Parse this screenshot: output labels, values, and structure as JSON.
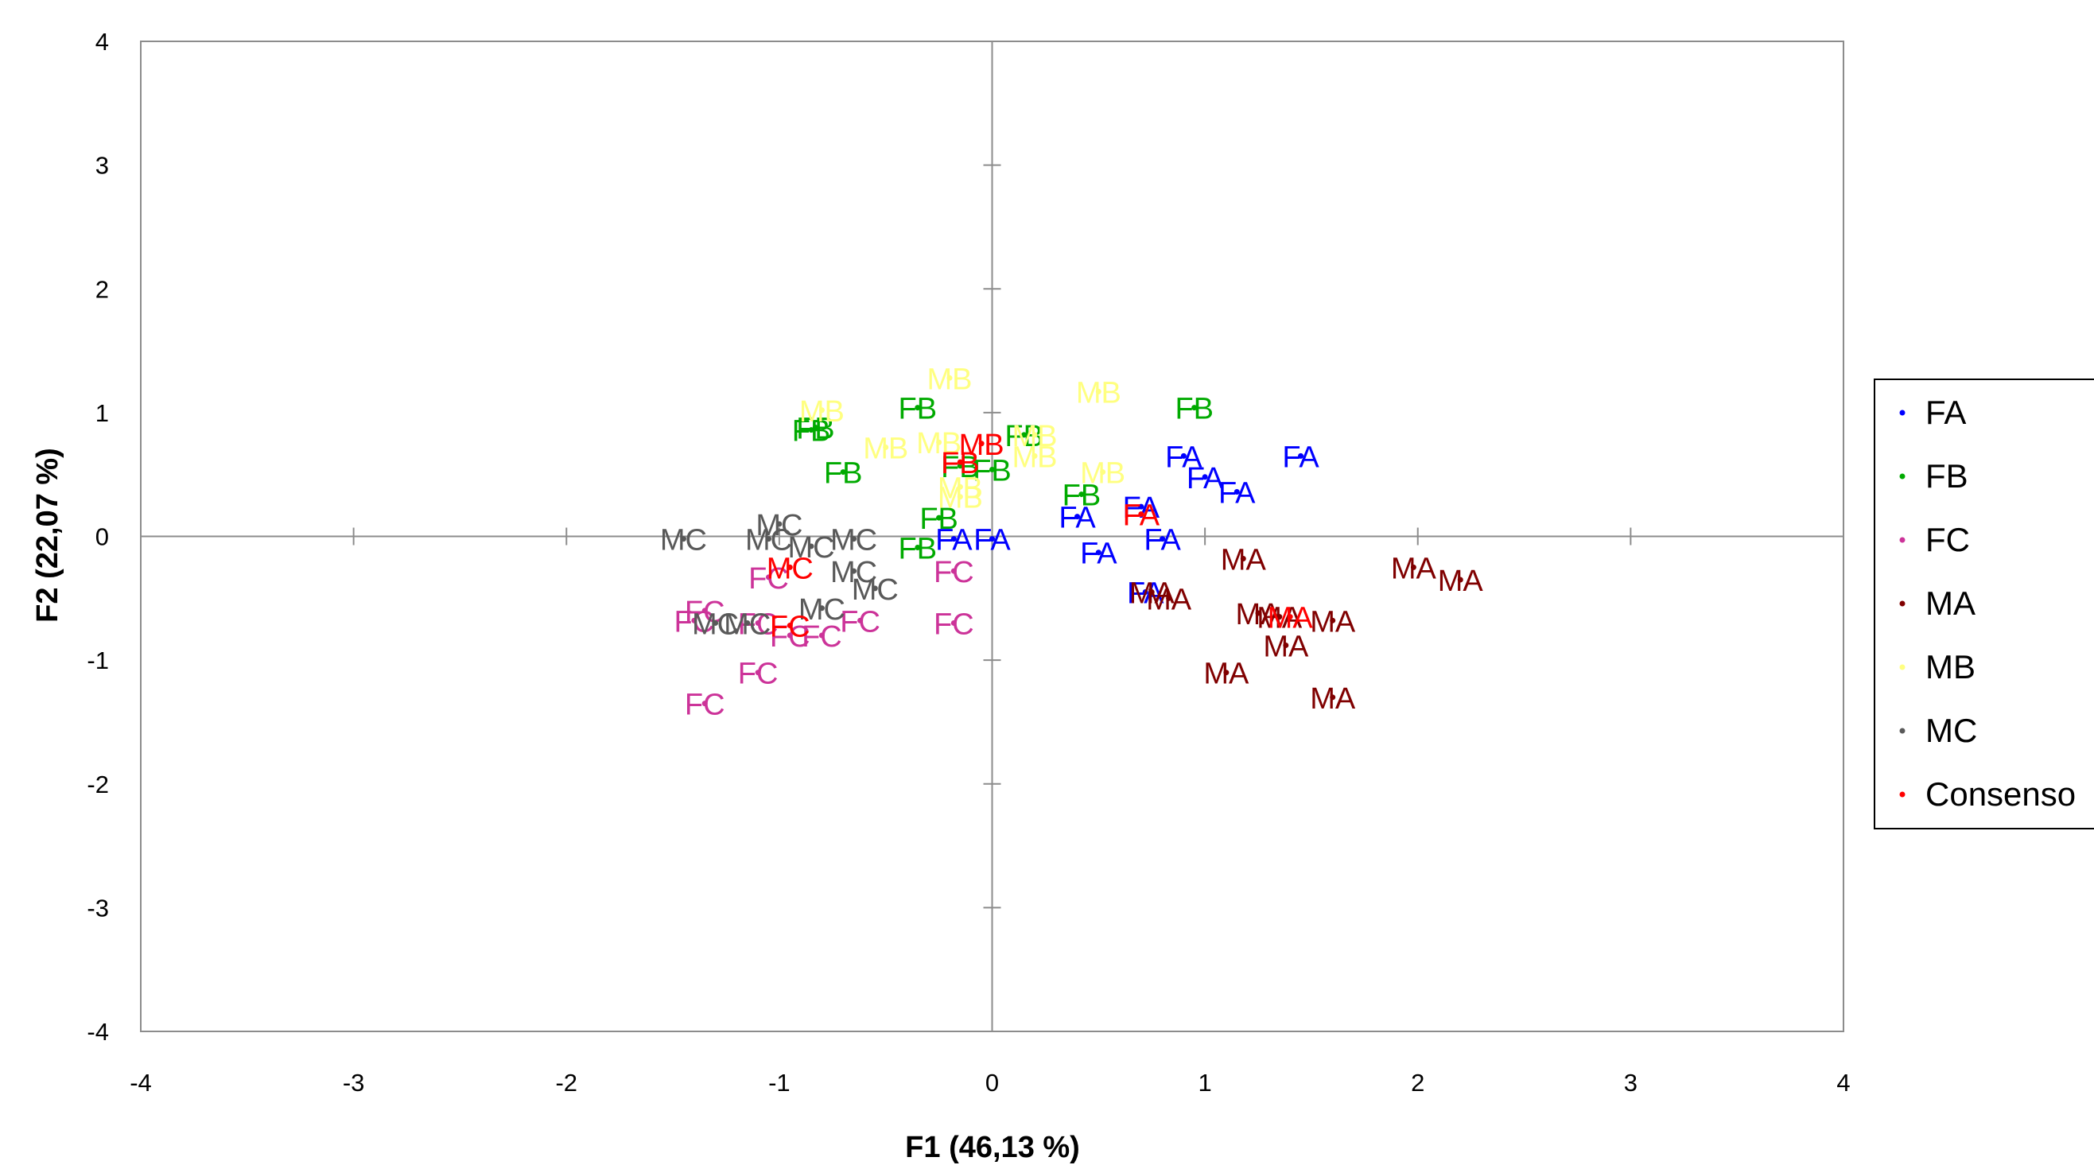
{
  "chart_data": {
    "type": "scatter",
    "title": "",
    "xlabel": "F1 (46,13 %)",
    "ylabel": "F2 (22,07 %)",
    "xlim": [
      -4,
      4
    ],
    "ylim": [
      -4,
      4
    ],
    "x_ticks": [
      "-4",
      "-3",
      "-2",
      "-1",
      "0",
      "1",
      "2",
      "3",
      "4"
    ],
    "y_ticks": [
      "4",
      "3",
      "2",
      "1",
      "0",
      "-1",
      "-2",
      "-3",
      "-4"
    ],
    "grid": false,
    "legend_position": "right",
    "series": [
      {
        "name": "FA",
        "color": "#0000ff",
        "points": [
          {
            "x": 0.9,
            "y": 0.65,
            "label": "FA"
          },
          {
            "x": 1.45,
            "y": 0.65,
            "label": "FA"
          },
          {
            "x": 1.0,
            "y": 0.48,
            "label": "FA"
          },
          {
            "x": 1.15,
            "y": 0.36,
            "label": "FA"
          },
          {
            "x": 0.4,
            "y": 0.16,
            "label": "FA"
          },
          {
            "x": 0.7,
            "y": 0.24,
            "label": "FA"
          },
          {
            "x": 0.8,
            "y": -0.02,
            "label": "FA"
          },
          {
            "x": 0.5,
            "y": -0.13,
            "label": "FA"
          },
          {
            "x": -0.18,
            "y": -0.02,
            "label": "FA"
          },
          {
            "x": 0.0,
            "y": -0.02,
            "label": "FA"
          },
          {
            "x": 0.72,
            "y": -0.45,
            "label": "FA"
          }
        ]
      },
      {
        "name": "FB",
        "color": "#00aa00",
        "points": [
          {
            "x": -0.35,
            "y": 1.04,
            "label": "FB"
          },
          {
            "x": 0.95,
            "y": 1.04,
            "label": "FB"
          },
          {
            "x": -0.85,
            "y": 0.86,
            "label": "FB"
          },
          {
            "x": -0.83,
            "y": 0.88,
            "label": "FB"
          },
          {
            "x": 0.15,
            "y": 0.82,
            "label": "FB"
          },
          {
            "x": -0.7,
            "y": 0.52,
            "label": "FB"
          },
          {
            "x": -0.15,
            "y": 0.57,
            "label": "FB"
          },
          {
            "x": 0.0,
            "y": 0.54,
            "label": "FB"
          },
          {
            "x": 0.42,
            "y": 0.34,
            "label": "FB"
          },
          {
            "x": -0.25,
            "y": 0.15,
            "label": "FB"
          },
          {
            "x": -0.35,
            "y": -0.09,
            "label": "FB"
          }
        ]
      },
      {
        "name": "FC",
        "color": "#cc3399",
        "points": [
          {
            "x": -1.05,
            "y": -0.33,
            "label": "FC"
          },
          {
            "x": -0.18,
            "y": -0.28,
            "label": "FC"
          },
          {
            "x": -1.35,
            "y": -0.6,
            "label": "FC"
          },
          {
            "x": -1.4,
            "y": -0.68,
            "label": "FC"
          },
          {
            "x": -1.1,
            "y": -0.7,
            "label": "FC"
          },
          {
            "x": -0.95,
            "y": -0.8,
            "label": "FC"
          },
          {
            "x": -0.8,
            "y": -0.8,
            "label": "FC"
          },
          {
            "x": -0.62,
            "y": -0.68,
            "label": "FC"
          },
          {
            "x": -0.18,
            "y": -0.7,
            "label": "FC"
          },
          {
            "x": -1.1,
            "y": -1.1,
            "label": "FC"
          },
          {
            "x": -1.35,
            "y": -1.35,
            "label": "FC"
          }
        ]
      },
      {
        "name": "MA",
        "color": "#800000",
        "points": [
          {
            "x": 1.98,
            "y": -0.25,
            "label": "MA"
          },
          {
            "x": 2.2,
            "y": -0.35,
            "label": "MA"
          },
          {
            "x": 1.18,
            "y": -0.18,
            "label": "MA"
          },
          {
            "x": 0.75,
            "y": -0.45,
            "label": "MA"
          },
          {
            "x": 0.83,
            "y": -0.5,
            "label": "MA"
          },
          {
            "x": 1.25,
            "y": -0.62,
            "label": "MA"
          },
          {
            "x": 1.35,
            "y": -0.65,
            "label": "MA"
          },
          {
            "x": 1.6,
            "y": -0.68,
            "label": "MA"
          },
          {
            "x": 1.38,
            "y": -0.88,
            "label": "MA"
          },
          {
            "x": 1.1,
            "y": -1.1,
            "label": "MA"
          },
          {
            "x": 1.6,
            "y": -1.3,
            "label": "MA"
          }
        ]
      },
      {
        "name": "MB",
        "color": "#ffff80",
        "points": [
          {
            "x": -0.2,
            "y": 1.28,
            "label": "MB"
          },
          {
            "x": 0.5,
            "y": 1.17,
            "label": "MB"
          },
          {
            "x": -0.8,
            "y": 1.02,
            "label": "MB"
          },
          {
            "x": 0.2,
            "y": 0.82,
            "label": "MB"
          },
          {
            "x": -0.5,
            "y": 0.72,
            "label": "MB"
          },
          {
            "x": -0.25,
            "y": 0.76,
            "label": "MB"
          },
          {
            "x": 0.2,
            "y": 0.65,
            "label": "MB"
          },
          {
            "x": 0.52,
            "y": 0.52,
            "label": "MB"
          },
          {
            "x": -0.15,
            "y": 0.4,
            "label": "MB"
          },
          {
            "x": -0.15,
            "y": 0.32,
            "label": "MB"
          }
        ]
      },
      {
        "name": "MC",
        "color": "#595959",
        "points": [
          {
            "x": -1.45,
            "y": -0.02,
            "label": "MC"
          },
          {
            "x": -1.0,
            "y": 0.1,
            "label": "MC"
          },
          {
            "x": -1.05,
            "y": -0.02,
            "label": "MC"
          },
          {
            "x": -0.65,
            "y": -0.02,
            "label": "MC"
          },
          {
            "x": -0.85,
            "y": -0.08,
            "label": "MC"
          },
          {
            "x": -0.65,
            "y": -0.28,
            "label": "MC"
          },
          {
            "x": -0.55,
            "y": -0.42,
            "label": "MC"
          },
          {
            "x": -0.8,
            "y": -0.58,
            "label": "MC"
          },
          {
            "x": -1.3,
            "y": -0.7,
            "label": "MC"
          },
          {
            "x": -1.15,
            "y": -0.7,
            "label": "MC"
          }
        ]
      },
      {
        "name": "Consenso",
        "color": "#ff0000",
        "points": [
          {
            "x": 0.7,
            "y": 0.18,
            "label": "FA"
          },
          {
            "x": -0.05,
            "y": 0.75,
            "label": "MB"
          },
          {
            "x": -0.15,
            "y": 0.6,
            "label": "FB"
          },
          {
            "x": -0.95,
            "y": -0.25,
            "label": "MC"
          },
          {
            "x": 1.4,
            "y": -0.65,
            "label": "MA"
          },
          {
            "x": -0.95,
            "y": -0.72,
            "label": "FC"
          }
        ]
      }
    ]
  }
}
